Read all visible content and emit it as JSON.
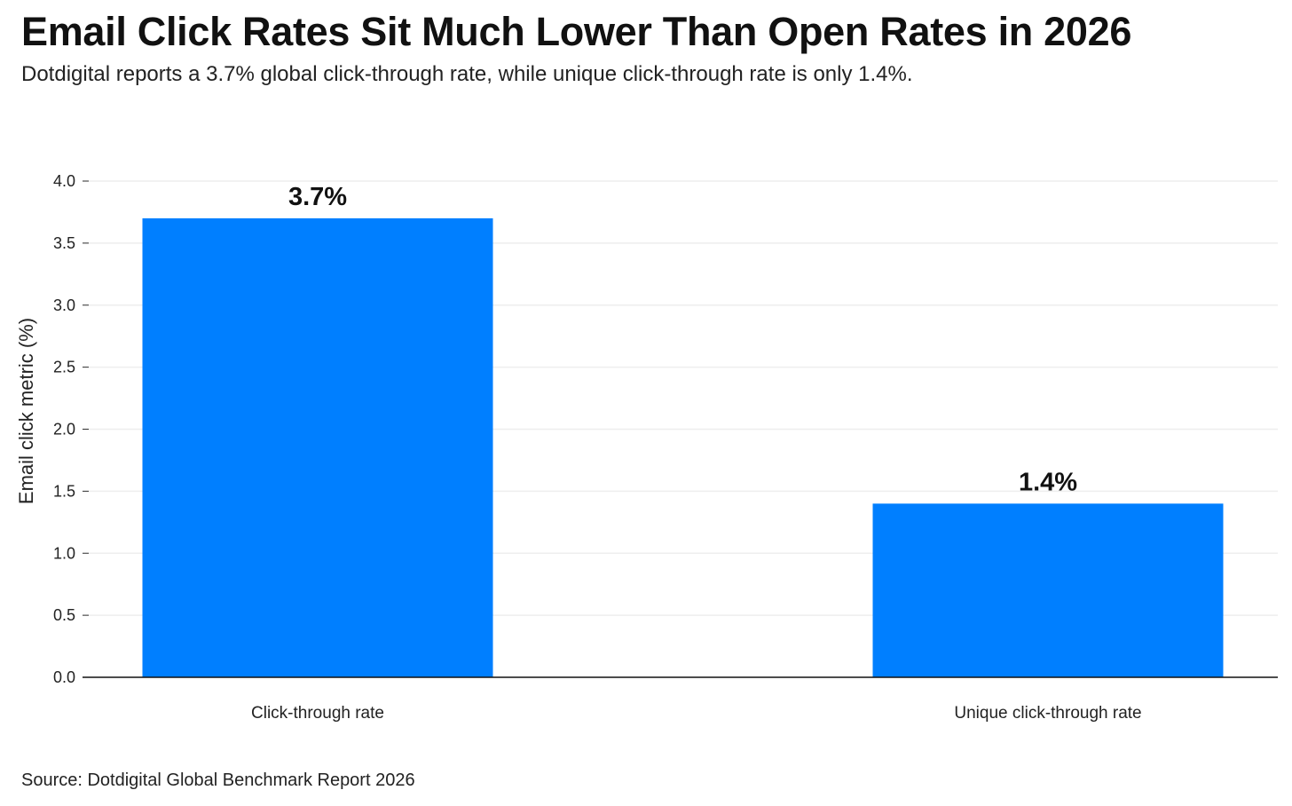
{
  "title": "Email Click Rates Sit Much Lower Than Open Rates in 2026",
  "subtitle": "Dotdigital reports a 3.7% global click-through rate, while unique click-through rate is only 1.4%.",
  "source": "Source: Dotdigital Global Benchmark Report 2026",
  "chart_data": {
    "type": "bar",
    "categories": [
      "Click-through rate",
      "Unique click-through rate"
    ],
    "values": [
      3.7,
      1.4
    ],
    "data_labels": [
      "3.7%",
      "1.4%"
    ],
    "xlabel": "",
    "ylabel": "Email click metric (%)",
    "ylim": [
      0,
      4.0
    ],
    "yticks": [
      "0.0",
      "0.5",
      "1.0",
      "1.5",
      "2.0",
      "2.5",
      "3.0",
      "3.5",
      "4.0"
    ],
    "grid": "horizontal",
    "bar_color": "#007FFF"
  }
}
